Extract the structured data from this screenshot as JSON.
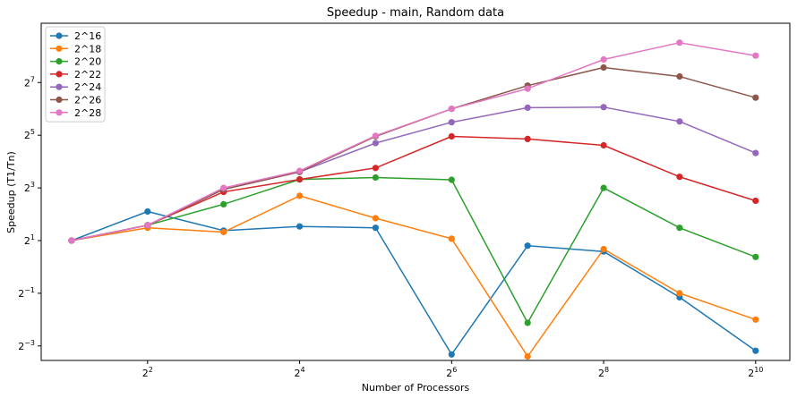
{
  "chart_data": {
    "type": "line",
    "title": "Speedup - main, Random data",
    "xlabel": "Number of Processors",
    "ylabel": "Speedup (T1/Tn)",
    "x_scale": "log2",
    "y_scale": "log2",
    "xlim_exp": [
      0.6,
      10.45
    ],
    "ylim_exp": [
      -3.55,
      9.25
    ],
    "x_ticks": [
      {
        "exp": 2,
        "base": "2",
        "sup": "2"
      },
      {
        "exp": 4,
        "base": "2",
        "sup": "4"
      },
      {
        "exp": 6,
        "base": "2",
        "sup": "6"
      },
      {
        "exp": 8,
        "base": "2",
        "sup": "8"
      },
      {
        "exp": 10,
        "base": "2",
        "sup": "10"
      }
    ],
    "y_ticks": [
      {
        "exp": -3,
        "base": "2",
        "sup": "−3"
      },
      {
        "exp": -1,
        "base": "2",
        "sup": "−1"
      },
      {
        "exp": 1,
        "base": "2",
        "sup": "1"
      },
      {
        "exp": 3,
        "base": "2",
        "sup": "3"
      },
      {
        "exp": 5,
        "base": "2",
        "sup": "5"
      },
      {
        "exp": 7,
        "base": "2",
        "sup": "7"
      }
    ],
    "x": [
      2,
      4,
      8,
      16,
      32,
      64,
      128,
      256,
      512,
      1024
    ],
    "grid": false,
    "legend_position": "top-left",
    "series": [
      {
        "name": "2^16",
        "color": "#1f77b4",
        "values": [
          2.0,
          4.3,
          2.6,
          2.9,
          2.8,
          0.1,
          1.75,
          1.5,
          0.45,
          0.11
        ]
      },
      {
        "name": "2^18",
        "color": "#ff7f0e",
        "values": [
          2.0,
          2.8,
          2.5,
          6.5,
          3.6,
          2.1,
          0.095,
          1.6,
          0.5,
          0.25
        ]
      },
      {
        "name": "2^20",
        "color": "#2ca02c",
        "values": [
          2.0,
          3.0,
          5.2,
          10.0,
          10.5,
          9.9,
          0.23,
          8.0,
          2.8,
          1.3
        ]
      },
      {
        "name": "2^22",
        "color": "#d62728",
        "values": [
          2.0,
          3.0,
          7.2,
          10.0,
          13.5,
          31.0,
          29.0,
          24.5,
          10.7,
          5.7
        ]
      },
      {
        "name": "2^24",
        "color": "#9467bd",
        "values": [
          2.0,
          3.0,
          7.7,
          12.2,
          26.0,
          45.0,
          66.0,
          67.0,
          46.0,
          20.0
        ]
      },
      {
        "name": "2^26",
        "color": "#8c564b",
        "values": [
          2.0,
          3.0,
          7.7,
          12.2,
          31.0,
          64.0,
          118.0,
          190.0,
          150.0,
          86.0
        ]
      },
      {
        "name": "2^28",
        "color": "#e377c2",
        "values": [
          2.0,
          3.0,
          8.0,
          12.5,
          31.5,
          64.0,
          109.0,
          235.0,
          365.0,
          260.0
        ]
      }
    ]
  }
}
